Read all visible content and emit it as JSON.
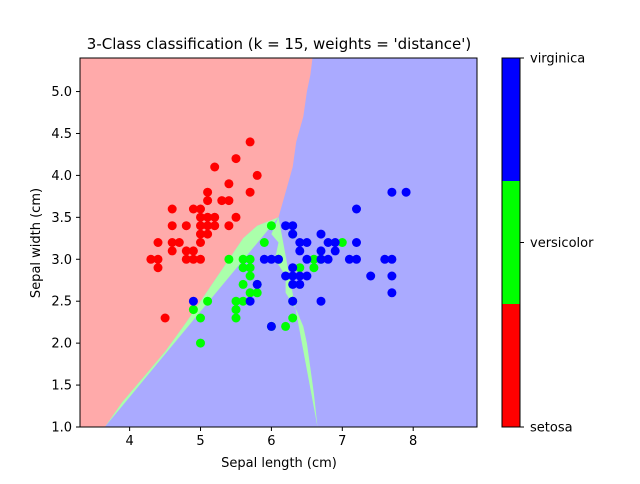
{
  "chart_data": {
    "type": "scatter",
    "title": "3-Class classification (k = 15, weights = 'distance')",
    "xlabel": "Sepal length (cm)",
    "ylabel": "Sepal width (cm)",
    "xlim": [
      3.3,
      8.9
    ],
    "ylim": [
      1.0,
      5.4
    ],
    "x_ticks": [
      4,
      5,
      6,
      7,
      8
    ],
    "y_ticks": [
      1.0,
      1.5,
      2.0,
      2.5,
      3.0,
      3.5,
      4.0,
      4.5,
      5.0
    ],
    "grid": false,
    "colorbar": {
      "labels": [
        "setosa",
        "versicolor",
        "virginica"
      ],
      "colors": [
        "#ff0000",
        "#00ff00",
        "#0000ff"
      ]
    },
    "region_colors": {
      "setosa": "#ffaaaa",
      "versicolor": "#aaffaa",
      "virginica": "#aaaaff"
    },
    "decision_boundaries": {
      "setosa_versicolor": [
        [
          3.65,
          1.0
        ],
        [
          3.9,
          1.3
        ],
        [
          4.2,
          1.6
        ],
        [
          4.5,
          1.9
        ],
        [
          4.8,
          2.25
        ],
        [
          5.0,
          2.5
        ],
        [
          5.2,
          2.75
        ],
        [
          5.4,
          3.0
        ],
        [
          5.6,
          3.25
        ],
        [
          5.8,
          3.4
        ],
        [
          6.1,
          3.5
        ]
      ],
      "setosa_virginica": [
        [
          6.1,
          3.5
        ],
        [
          6.2,
          3.8
        ],
        [
          6.3,
          4.1
        ],
        [
          6.35,
          4.4
        ],
        [
          6.45,
          4.7
        ],
        [
          6.5,
          5.0
        ],
        [
          6.55,
          5.2
        ],
        [
          6.58,
          5.4
        ]
      ],
      "versicolor_virginica": [
        [
          6.1,
          3.5
        ],
        [
          6.0,
          3.3
        ],
        [
          6.1,
          3.2
        ],
        [
          6.05,
          3.0
        ],
        [
          6.2,
          2.8
        ],
        [
          6.2,
          2.6
        ],
        [
          6.35,
          2.4
        ],
        [
          6.45,
          2.2
        ],
        [
          6.5,
          2.0
        ],
        [
          6.55,
          1.7
        ],
        [
          6.6,
          1.4
        ],
        [
          6.65,
          1.0
        ]
      ]
    },
    "series": [
      {
        "name": "setosa",
        "color": "#ff0000",
        "points": [
          [
            4.3,
            3.0
          ],
          [
            4.4,
            2.9
          ],
          [
            4.4,
            3.0
          ],
          [
            4.4,
            3.2
          ],
          [
            4.5,
            2.3
          ],
          [
            4.6,
            3.1
          ],
          [
            4.6,
            3.2
          ],
          [
            4.6,
            3.4
          ],
          [
            4.6,
            3.6
          ],
          [
            4.7,
            3.2
          ],
          [
            4.8,
            3.0
          ],
          [
            4.8,
            3.1
          ],
          [
            4.8,
            3.4
          ],
          [
            4.9,
            3.0
          ],
          [
            4.9,
            3.1
          ],
          [
            4.9,
            3.6
          ],
          [
            5.0,
            3.0
          ],
          [
            5.0,
            3.2
          ],
          [
            5.0,
            3.3
          ],
          [
            5.0,
            3.4
          ],
          [
            5.0,
            3.5
          ],
          [
            5.0,
            3.6
          ],
          [
            5.1,
            3.3
          ],
          [
            5.1,
            3.4
          ],
          [
            5.1,
            3.5
          ],
          [
            5.1,
            3.7
          ],
          [
            5.1,
            3.8
          ],
          [
            5.2,
            3.4
          ],
          [
            5.2,
            3.5
          ],
          [
            5.2,
            4.1
          ],
          [
            5.3,
            3.7
          ],
          [
            5.4,
            3.4
          ],
          [
            5.4,
            3.7
          ],
          [
            5.4,
            3.9
          ],
          [
            5.5,
            3.5
          ],
          [
            5.5,
            4.2
          ],
          [
            5.7,
            3.8
          ],
          [
            5.7,
            4.4
          ],
          [
            5.8,
            4.0
          ]
        ]
      },
      {
        "name": "versicolor",
        "color": "#00ff00",
        "points": [
          [
            4.9,
            2.4
          ],
          [
            5.0,
            2.0
          ],
          [
            5.0,
            2.3
          ],
          [
            5.1,
            2.5
          ],
          [
            5.5,
            2.3
          ],
          [
            5.5,
            2.4
          ],
          [
            5.5,
            2.5
          ],
          [
            5.6,
            2.5
          ],
          [
            5.6,
            2.7
          ],
          [
            5.6,
            2.9
          ],
          [
            5.6,
            3.0
          ],
          [
            5.7,
            2.6
          ],
          [
            5.7,
            2.8
          ],
          [
            5.7,
            2.9
          ],
          [
            5.7,
            3.0
          ],
          [
            5.8,
            2.6
          ],
          [
            5.8,
            2.7
          ],
          [
            5.9,
            3.2
          ],
          [
            6.0,
            3.4
          ],
          [
            6.1,
            3.0
          ],
          [
            6.2,
            2.2
          ],
          [
            6.3,
            2.3
          ],
          [
            6.3,
            2.5
          ],
          [
            6.3,
            3.3
          ],
          [
            6.4,
            2.9
          ],
          [
            6.6,
            2.9
          ],
          [
            6.6,
            3.0
          ],
          [
            6.7,
            3.0
          ],
          [
            7.0,
            3.2
          ],
          [
            5.4,
            3.0
          ],
          [
            6.0,
            2.2
          ]
        ]
      },
      {
        "name": "virginica",
        "color": "#0000ff",
        "points": [
          [
            4.9,
            2.5
          ],
          [
            5.7,
            2.5
          ],
          [
            5.8,
            2.7
          ],
          [
            5.9,
            3.0
          ],
          [
            6.0,
            2.2
          ],
          [
            6.0,
            3.0
          ],
          [
            6.1,
            3.0
          ],
          [
            6.2,
            3.4
          ],
          [
            6.3,
            2.5
          ],
          [
            6.3,
            2.7
          ],
          [
            6.3,
            2.8
          ],
          [
            6.3,
            2.9
          ],
          [
            6.3,
            3.3
          ],
          [
            6.3,
            3.4
          ],
          [
            6.4,
            2.7
          ],
          [
            6.4,
            2.8
          ],
          [
            6.4,
            3.2
          ],
          [
            6.5,
            2.8
          ],
          [
            6.5,
            3.0
          ],
          [
            6.5,
            3.2
          ],
          [
            6.7,
            2.5
          ],
          [
            6.7,
            3.0
          ],
          [
            6.7,
            3.1
          ],
          [
            6.7,
            3.3
          ],
          [
            6.8,
            3.0
          ],
          [
            6.8,
            3.2
          ],
          [
            6.9,
            3.1
          ],
          [
            6.9,
            3.2
          ],
          [
            7.1,
            3.0
          ],
          [
            7.2,
            3.0
          ],
          [
            7.2,
            3.2
          ],
          [
            7.2,
            3.6
          ],
          [
            7.4,
            2.8
          ],
          [
            7.6,
            3.0
          ],
          [
            7.7,
            2.6
          ],
          [
            7.7,
            2.8
          ],
          [
            7.7,
            3.0
          ],
          [
            7.7,
            3.8
          ],
          [
            7.9,
            3.8
          ],
          [
            6.4,
            3.1
          ],
          [
            6.2,
            2.8
          ]
        ]
      }
    ]
  }
}
